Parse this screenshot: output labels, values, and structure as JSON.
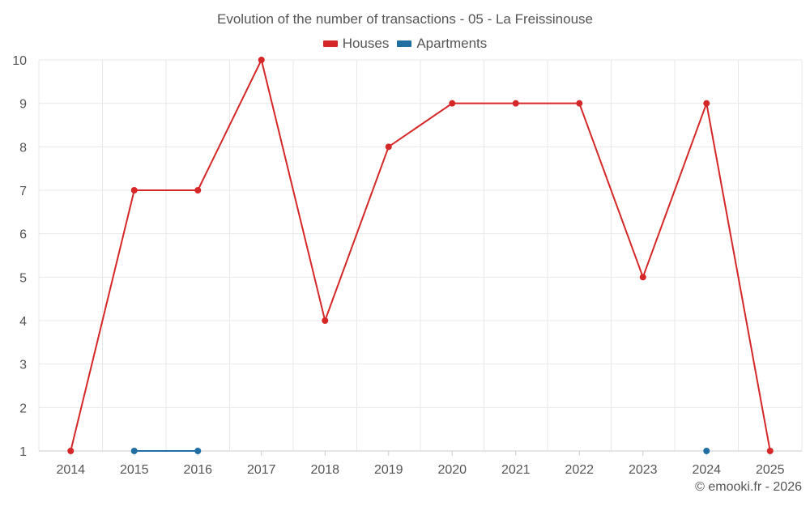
{
  "chart_data": {
    "type": "line",
    "title": "Evolution of the number of transactions - 05 - La Freissinouse",
    "categories": [
      "2014",
      "2015",
      "2016",
      "2017",
      "2018",
      "2019",
      "2020",
      "2021",
      "2022",
      "2023",
      "2024",
      "2025"
    ],
    "ylim": [
      1,
      10
    ],
    "yticks": [
      1,
      2,
      3,
      4,
      5,
      6,
      7,
      8,
      9,
      10
    ],
    "grid": true,
    "legend_position": "top-center",
    "series": [
      {
        "name": "Houses",
        "color": "#d62728",
        "values": [
          1,
          7,
          7,
          10,
          4,
          8,
          9,
          9,
          9,
          5,
          9,
          1
        ]
      },
      {
        "name": "Apartments",
        "color": "#1f6fa3",
        "values": [
          null,
          1,
          1,
          null,
          null,
          null,
          null,
          null,
          null,
          null,
          1,
          null
        ]
      }
    ]
  },
  "credit": "© emooki.fr - 2026"
}
